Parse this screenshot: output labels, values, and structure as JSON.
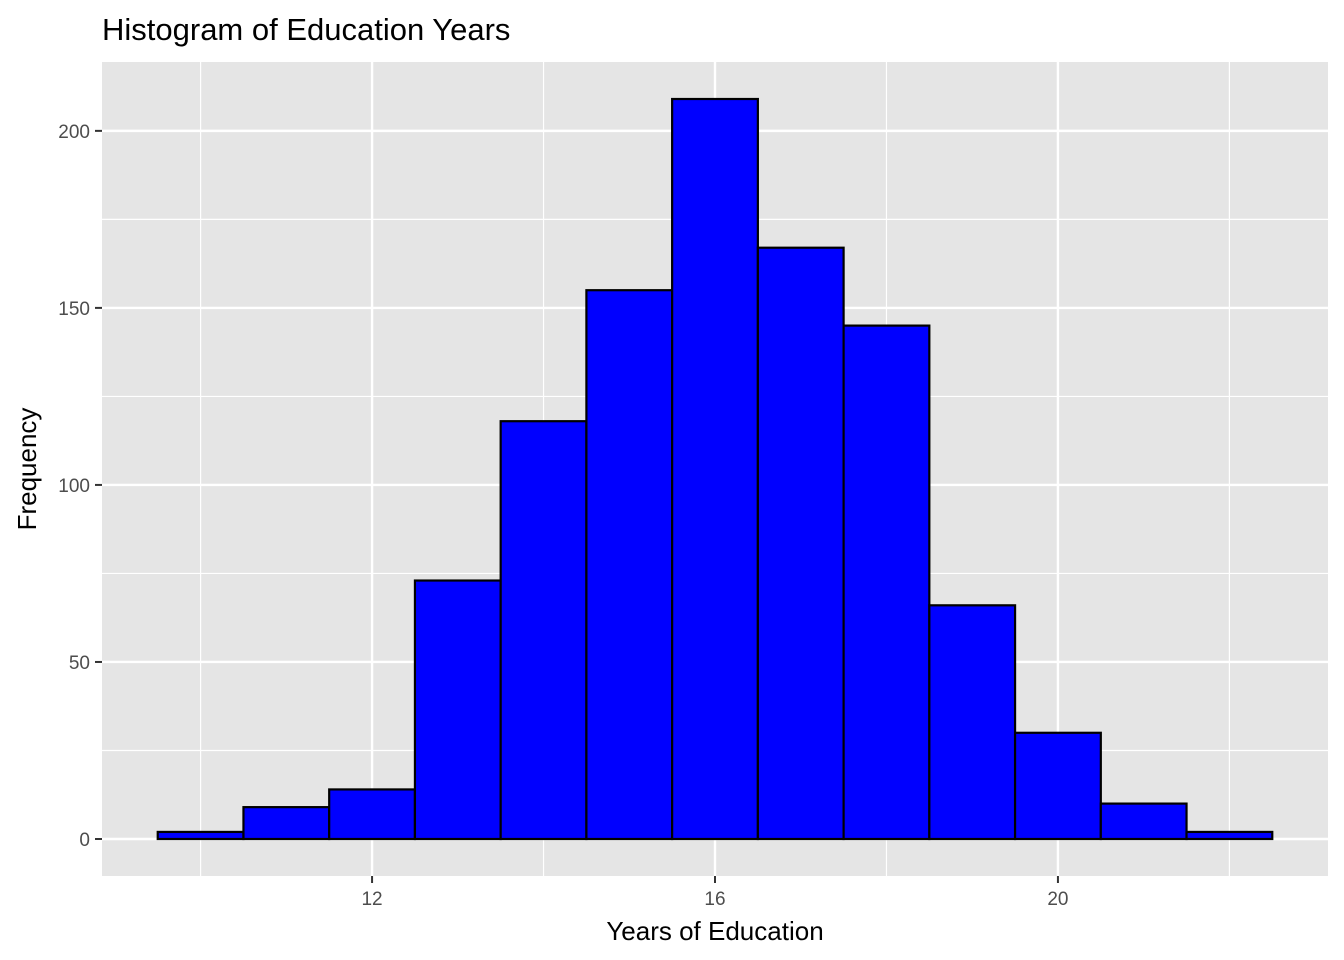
{
  "chart_data": {
    "type": "bar",
    "title": "Histogram of Education Years",
    "xlabel": "Years of Education",
    "ylabel": "Frequency",
    "bin_width": 1,
    "bins": [
      {
        "x": 10,
        "count": 2
      },
      {
        "x": 11,
        "count": 9
      },
      {
        "x": 12,
        "count": 14
      },
      {
        "x": 13,
        "count": 73
      },
      {
        "x": 14,
        "count": 118
      },
      {
        "x": 15,
        "count": 155
      },
      {
        "x": 16,
        "count": 209
      },
      {
        "x": 17,
        "count": 167
      },
      {
        "x": 18,
        "count": 145
      },
      {
        "x": 19,
        "count": 66
      },
      {
        "x": 20,
        "count": 30
      },
      {
        "x": 21,
        "count": 10
      },
      {
        "x": 22,
        "count": 2
      }
    ],
    "xlim": [
      8.85,
      23.15
    ],
    "ylim": [
      -10.45,
      219.45
    ],
    "x_ticks": [
      12,
      16,
      20
    ],
    "x_minor_ticks": [
      10,
      14,
      18,
      22
    ],
    "y_ticks": [
      0,
      50,
      100,
      150,
      200
    ],
    "y_minor_ticks": [
      25,
      75,
      125,
      175
    ],
    "grid": true,
    "colors": {
      "bar_fill": "#0000ff",
      "bar_stroke": "#000000",
      "panel_bg": "#e5e5e5",
      "grid": "#ffffff"
    }
  }
}
